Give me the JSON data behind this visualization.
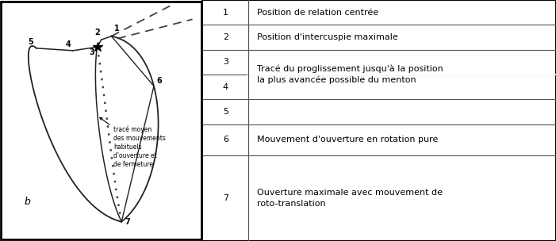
{
  "fig_width": 7.01,
  "fig_height": 3.04,
  "dpi": 100,
  "annotation_text": "tracé moyen\ndes mouvements\nhabituels\nd'ouverture et\nde fermeture",
  "colors": {
    "line": "#222222",
    "bg": "#ffffff"
  },
  "table_rows_combined": [
    [
      "1",
      "Position de relation centrée",
      false
    ],
    [
      "2",
      "Position d'intercuspie maximale",
      false
    ],
    [
      "3",
      "Tracé du proglissement jusqu'à la position",
      true
    ],
    [
      "4",
      "la plus avancée possible du menton",
      true
    ],
    [
      "5",
      "",
      false
    ],
    [
      "6",
      "Mouvement d'ouverture en rotation pure",
      false
    ],
    [
      "7",
      "Ouverture maximale avec mouvement de\nroto-translation",
      false
    ]
  ]
}
